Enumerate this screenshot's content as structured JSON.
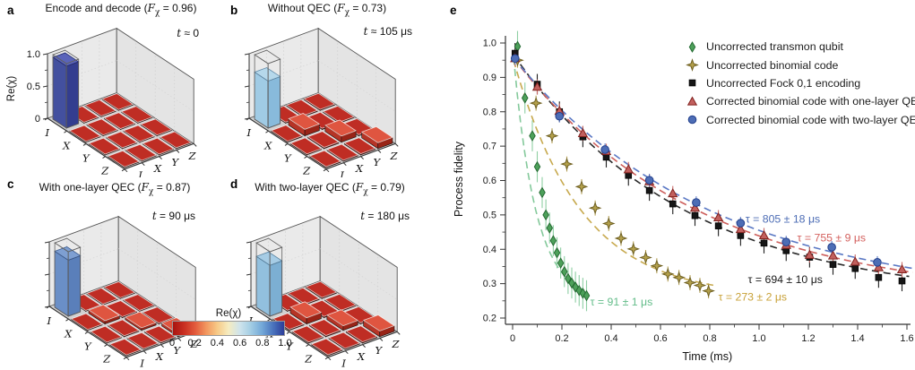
{
  "panel_letters": [
    "a",
    "b",
    "c",
    "d",
    "e"
  ],
  "colorbar": {
    "title": "Re(χ)",
    "tick_labels": [
      "0",
      "0.2",
      "0.4",
      "0.6",
      "0.8",
      "1.0"
    ],
    "gradient": [
      "#a81410",
      "#c92f22",
      "#e25b3c",
      "#f2975f",
      "#f7ca87",
      "#f5ecc0",
      "#cfe4ec",
      "#a3cde4",
      "#74a9d8",
      "#4a74bd",
      "#2c3d99"
    ]
  },
  "tile_colors": {
    "flat": {
      "top": "#bf2d24",
      "left": "#9c1f19",
      "right": "#7e1511"
    },
    "raised": {
      "top": "#df5540",
      "left": "#b63426",
      "right": "#992417"
    }
  },
  "chart_data": [
    {
      "id": "a",
      "type": "bar3d",
      "title_prefix": "Encode and decode (",
      "f_symbol": "F",
      "f_sub": "χ",
      "f_rest": " = 0.96)",
      "f_value": 0.96,
      "time_italic": "t",
      "time_rest": " ≈ 0",
      "time_value_us": 0,
      "z_label": "Re(χ)",
      "z_tick_labels": [
        "1.0",
        "0.5",
        "0"
      ],
      "show_z_tick_labels": true,
      "row_labels": [
        "I",
        "X",
        "Y",
        "Z"
      ],
      "col_labels": [
        "I",
        "X",
        "Y",
        "Z"
      ],
      "bar_value": 0.96,
      "bar_colors": {
        "top": "#5a64ba",
        "left": "#43509f",
        "right": "#333d8f",
        "edge": "#242c6e"
      },
      "matrix": [
        [
          0.96,
          0.012,
          0.012,
          0.012
        ],
        [
          0.012,
          0.012,
          0.012,
          0.012
        ],
        [
          0.012,
          0.012,
          0.012,
          0.012
        ],
        [
          0.012,
          0.012,
          0.012,
          0.012
        ]
      ]
    },
    {
      "id": "b",
      "type": "bar3d",
      "title_prefix": "Without QEC (",
      "f_symbol": "F",
      "f_sub": "χ",
      "f_rest": " = 0.73)",
      "f_value": 0.73,
      "time_italic": "t",
      "time_rest": " ≈ 105 μs",
      "time_value_us": 105,
      "row_labels": [
        "I",
        "X",
        "Y",
        "Z"
      ],
      "col_labels": [
        "I",
        "X",
        "Y",
        "Z"
      ],
      "bar_value": 0.73,
      "bar_colors": {
        "top": "#b6d8eb",
        "left": "#a0cbe5",
        "right": "#88badb",
        "edge": "#5d87a6"
      },
      "matrix": [
        [
          0.73,
          0.015,
          0.015,
          0.015
        ],
        [
          0.015,
          0.1,
          0.018,
          0.015
        ],
        [
          0.015,
          0.018,
          0.095,
          0.018
        ],
        [
          0.015,
          0.015,
          0.018,
          0.09
        ]
      ]
    },
    {
      "id": "c",
      "type": "bar3d",
      "title_prefix": "With one-layer QEC (",
      "f_symbol": "F",
      "f_sub": "χ",
      "f_rest": " = 0.87)",
      "f_value": 0.87,
      "time_italic": "t",
      "time_rest": " = 90 μs",
      "time_value_us": 90,
      "row_labels": [
        "I",
        "X",
        "Y",
        "Z"
      ],
      "col_labels": [
        "I",
        "X",
        "Y",
        "Z"
      ],
      "bar_value": 0.87,
      "bar_colors": {
        "top": "#7e9fd2",
        "left": "#6a8fc7",
        "right": "#5a7fba",
        "edge": "#39598c"
      },
      "matrix": [
        [
          0.87,
          0.012,
          0.012,
          0.012
        ],
        [
          0.012,
          0.05,
          0.014,
          0.012
        ],
        [
          0.012,
          0.014,
          0.038,
          0.014
        ],
        [
          0.012,
          0.012,
          0.014,
          0.046
        ]
      ]
    },
    {
      "id": "d",
      "type": "bar3d",
      "title_prefix": "With two-layer QEC (",
      "f_symbol": "F",
      "f_sub": "χ",
      "f_rest": " = 0.79)",
      "f_value": 0.79,
      "time_italic": "t",
      "time_rest": " = 180 μs",
      "time_value_us": 180,
      "row_labels": [
        "I",
        "X",
        "Y",
        "Z"
      ],
      "col_labels": [
        "I",
        "X",
        "Y",
        "Z"
      ],
      "bar_value": 0.79,
      "bar_colors": {
        "top": "#a6cce5",
        "left": "#92c0de",
        "right": "#7cafd3",
        "edge": "#55809f"
      },
      "matrix": [
        [
          0.79,
          0.015,
          0.015,
          0.015
        ],
        [
          0.015,
          0.095,
          0.018,
          0.015
        ],
        [
          0.015,
          0.018,
          0.07,
          0.018
        ],
        [
          0.015,
          0.015,
          0.018,
          0.088
        ]
      ]
    },
    {
      "id": "e",
      "type": "scatter",
      "xlabel": "Time (ms)",
      "ylabel": "Process fidelity",
      "xlim": [
        0,
        1.6
      ],
      "ylim": [
        0.2,
        1.0
      ],
      "x_ticks": [
        0,
        0.2,
        0.4,
        0.6,
        0.8,
        1.0,
        1.2,
        1.4,
        1.6
      ],
      "x_tick_labels": [
        "0",
        "0.2",
        "0.4",
        "0.6",
        "0.8",
        "1.0",
        "1.2",
        "1.4",
        "1.6"
      ],
      "y_ticks": [
        0.2,
        0.3,
        0.4,
        0.5,
        0.6,
        0.7,
        0.8,
        0.9,
        1.0
      ],
      "y_tick_labels": [
        "0.2",
        "0.3",
        "0.4",
        "0.5",
        "0.6",
        "0.7",
        "0.8",
        "0.9",
        "1.0"
      ],
      "legend_position": "upper right",
      "grid": false,
      "series": [
        {
          "name": "Uncorrected transmon qubit",
          "marker": "diamond",
          "color": "#4da05a",
          "edge": "#256b33",
          "err": 0.045,
          "err_color": "#8ecfa3",
          "fit": {
            "A": 0.74,
            "tau_ms": 0.091,
            "C": 0.25,
            "tmax": 0.31,
            "color": "#84c99b"
          },
          "points": [
            [
              0.02,
              0.99
            ],
            [
              0.05,
              0.84
            ],
            [
              0.08,
              0.73
            ],
            [
              0.1,
              0.64
            ],
            [
              0.12,
              0.565
            ],
            [
              0.135,
              0.5
            ],
            [
              0.15,
              0.462
            ],
            [
              0.165,
              0.425
            ],
            [
              0.18,
              0.39
            ],
            [
              0.195,
              0.36
            ],
            [
              0.21,
              0.335
            ],
            [
              0.225,
              0.315
            ],
            [
              0.24,
              0.302
            ],
            [
              0.255,
              0.29
            ],
            [
              0.27,
              0.28
            ],
            [
              0.285,
              0.272
            ],
            [
              0.3,
              0.265
            ]
          ]
        },
        {
          "name": "Uncorrected binomial code",
          "marker": "star4",
          "color": "#b3a04c",
          "edge": "#6e5f20",
          "err": 0.022,
          "err_color": "#bba75a",
          "fit": {
            "A": 0.7,
            "tau_ms": 0.273,
            "C": 0.26,
            "tmax": 0.82,
            "color": "#c7a94e"
          },
          "points": [
            [
              0.02,
              0.95
            ],
            [
              0.095,
              0.825
            ],
            [
              0.16,
              0.73
            ],
            [
              0.22,
              0.648
            ],
            [
              0.28,
              0.582
            ],
            [
              0.335,
              0.52
            ],
            [
              0.39,
              0.475
            ],
            [
              0.44,
              0.432
            ],
            [
              0.49,
              0.401
            ],
            [
              0.54,
              0.376
            ],
            [
              0.585,
              0.352
            ],
            [
              0.63,
              0.328
            ],
            [
              0.675,
              0.318
            ],
            [
              0.72,
              0.303
            ],
            [
              0.76,
              0.295
            ],
            [
              0.795,
              0.279
            ]
          ]
        },
        {
          "name": "Uncorrected Fock 0,1 encoding",
          "marker": "square",
          "color": "#161616",
          "edge": "#000000",
          "err": 0.03,
          "err_color": "#1d1d1d",
          "fit": {
            "A": 0.72,
            "tau_ms": 0.694,
            "C": 0.25,
            "tmax": 1.62,
            "color": "#2a2a2a"
          },
          "points": [
            [
              0.01,
              0.97
            ],
            [
              0.1,
              0.88
            ],
            [
              0.19,
              0.8
            ],
            [
              0.285,
              0.727
            ],
            [
              0.38,
              0.668
            ],
            [
              0.47,
              0.615
            ],
            [
              0.555,
              0.571
            ],
            [
              0.65,
              0.532
            ],
            [
              0.74,
              0.498
            ],
            [
              0.835,
              0.468
            ],
            [
              0.925,
              0.44
            ],
            [
              1.02,
              0.418
            ],
            [
              1.11,
              0.396
            ],
            [
              1.205,
              0.377
            ],
            [
              1.3,
              0.356
            ],
            [
              1.39,
              0.344
            ],
            [
              1.485,
              0.318
            ],
            [
              1.58,
              0.308
            ]
          ]
        },
        {
          "name": "Corrected binomial code with one-layer QEC",
          "marker": "triangle",
          "color": "#c2605e",
          "edge": "#83221f",
          "err": 0.022,
          "err_color": "#c96b68",
          "fit": {
            "A": 0.71,
            "tau_ms": 0.755,
            "C": 0.25,
            "tmax": 1.63,
            "color": "#cd5f5c"
          },
          "points": [
            [
              0.01,
              0.955
            ],
            [
              0.1,
              0.872
            ],
            [
              0.19,
              0.802
            ],
            [
              0.285,
              0.737
            ],
            [
              0.38,
              0.685
            ],
            [
              0.47,
              0.632
            ],
            [
              0.555,
              0.597
            ],
            [
              0.65,
              0.562
            ],
            [
              0.74,
              0.52
            ],
            [
              0.835,
              0.492
            ],
            [
              0.925,
              0.458
            ],
            [
              1.02,
              0.44
            ],
            [
              1.11,
              0.412
            ],
            [
              1.205,
              0.383
            ],
            [
              1.3,
              0.381
            ],
            [
              1.39,
              0.363
            ],
            [
              1.485,
              0.347
            ],
            [
              1.58,
              0.341
            ]
          ]
        },
        {
          "name": "Corrected binomial code with two-layer QEC",
          "marker": "circle",
          "color": "#4d6db5",
          "edge": "#223f8c",
          "err": 0.018,
          "err_color": "#5a78c4",
          "fit": {
            "A": 0.71,
            "tau_ms": 0.805,
            "C": 0.25,
            "tmax": 1.64,
            "color": "#5a78c4"
          },
          "points": [
            [
              0.01,
              0.955
            ],
            [
              0.19,
              0.787
            ],
            [
              0.375,
              0.69
            ],
            [
              0.555,
              0.601
            ],
            [
              0.745,
              0.536
            ],
            [
              0.925,
              0.476
            ],
            [
              1.11,
              0.421
            ],
            [
              1.295,
              0.406
            ],
            [
              1.48,
              0.362
            ]
          ]
        }
      ],
      "annotations": [
        {
          "text": "τ = 91 ± 1 μs",
          "color": "#64bd8a",
          "x": 0.315,
          "y": 0.237
        },
        {
          "text": "τ = 273 ± 2 μs",
          "color": "#c8a137",
          "x": 0.835,
          "y": 0.251
        },
        {
          "text": "τ = 694 ± 10 μs",
          "color": "#1a1a1a",
          "x": 0.955,
          "y": 0.302
        },
        {
          "text": "τ = 755 ± 9 μs",
          "color": "#d4625f",
          "x": 1.155,
          "y": 0.423
        },
        {
          "text": "τ = 805 ± 18 μs",
          "color": "#4d6db5",
          "x": 0.945,
          "y": 0.477
        }
      ]
    }
  ]
}
